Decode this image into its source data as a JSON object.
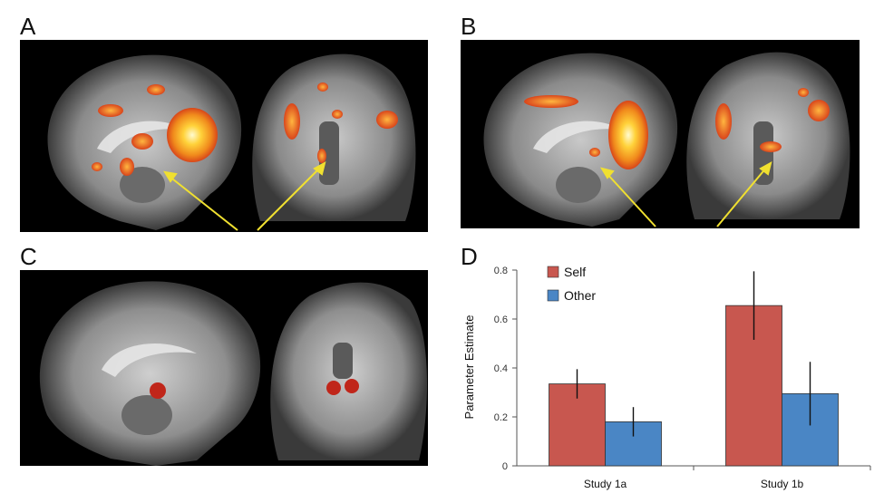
{
  "panels": {
    "a": "A",
    "b": "B",
    "c": "C",
    "d": "D"
  },
  "chart_data": {
    "type": "bar",
    "categories": [
      "Study 1a",
      "Study 1b"
    ],
    "series": [
      {
        "name": "Self",
        "values": [
          0.335,
          0.655
        ],
        "error": [
          0.06,
          0.14
        ],
        "color": "#c8574f"
      },
      {
        "name": "Other",
        "values": [
          0.18,
          0.295
        ],
        "error": [
          0.06,
          0.13
        ],
        "color": "#4a86c5"
      }
    ],
    "ylabel": "Parameter Estimate",
    "xlabel": "",
    "ylim": [
      0,
      0.8
    ],
    "yticks": [
      "0",
      "0.2",
      "0.4",
      "0.6",
      "0.8"
    ],
    "legend_position": "top-left",
    "grid": false
  }
}
